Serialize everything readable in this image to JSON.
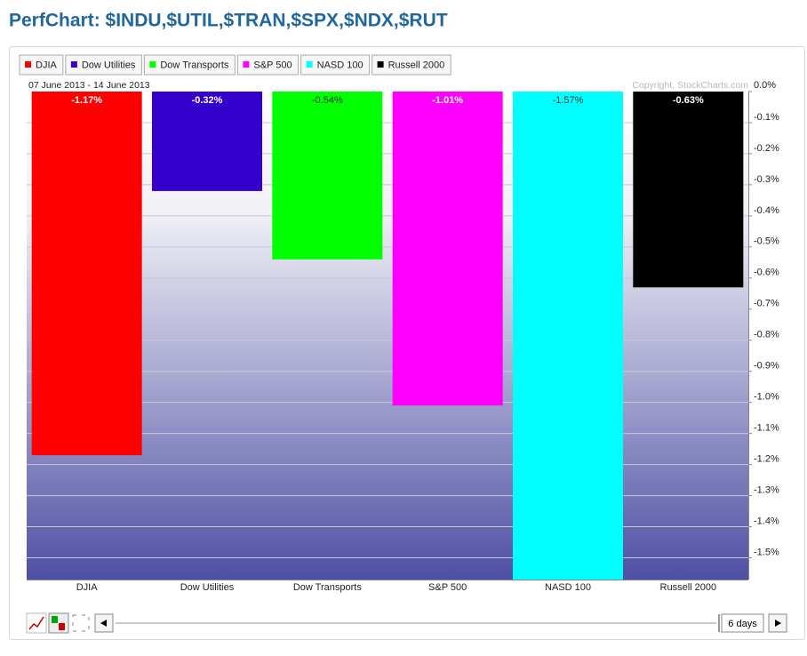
{
  "chart_data": {
    "type": "bar",
    "title": "PerfChart: $INDU,$UTIL,$TRAN,$SPX,$NDX,$RUT",
    "date_range": "07 June 2013 - 14 June 2013",
    "copyright": "Copyright, StockCharts.com",
    "categories": [
      "DJIA",
      "Dow Utilities",
      "Dow Transports",
      "S&P 500",
      "NASD 100",
      "Russell 2000"
    ],
    "values": [
      -1.17,
      -0.32,
      -0.54,
      -1.01,
      -1.57,
      -0.63
    ],
    "value_labels": [
      "-1.17%",
      "-0.32%",
      "-0.54%",
      "-1.01%",
      "-1.57%",
      "-0.63%"
    ],
    "colors": [
      "#ff0000",
      "#3300cc",
      "#00ff00",
      "#ff00ff",
      "#00ffff",
      "#000000"
    ],
    "ylim": [
      -1.57,
      0
    ],
    "yticks": [
      {
        "value": 0,
        "label": "0.0%"
      },
      {
        "value": -0.1,
        "label": "-0.1%"
      },
      {
        "value": -0.2,
        "label": "-0.2%"
      },
      {
        "value": -0.3,
        "label": "-0.3%"
      },
      {
        "value": -0.4,
        "label": "-0.4%"
      },
      {
        "value": -0.5,
        "label": "-0.5%"
      },
      {
        "value": -0.6,
        "label": "-0.6%"
      },
      {
        "value": -0.7,
        "label": "-0.7%"
      },
      {
        "value": -0.8,
        "label": "-0.8%"
      },
      {
        "value": -0.9,
        "label": "-0.9%"
      },
      {
        "value": -1.0,
        "label": "-1.0%"
      },
      {
        "value": -1.1,
        "label": "-1.1%"
      },
      {
        "value": -1.2,
        "label": "-1.2%"
      },
      {
        "value": -1.3,
        "label": "-1.3%"
      },
      {
        "value": -1.4,
        "label": "-1.4%"
      },
      {
        "value": -1.5,
        "label": "-1.5%"
      }
    ],
    "grid": true
  },
  "controls": {
    "range_button": "6 days"
  }
}
